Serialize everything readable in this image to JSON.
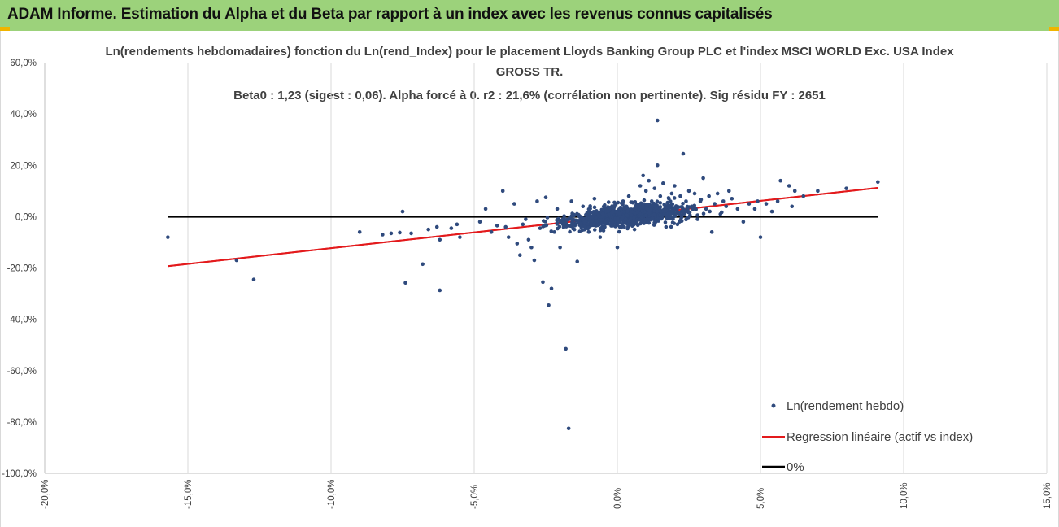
{
  "banner": {
    "title": "ADAM Informe. Estimation du Alpha et du Beta par rapport à un index avec les revenus connus capitalisés"
  },
  "chart_data": {
    "type": "scatter",
    "title_line1": "Ln(rendements hebdomadaires) fonction du Ln(rend_Index) pour le placement Lloyds Banking Group PLC et l'index MSCI WORLD Exc. USA Index",
    "title_line2": "GROSS TR.",
    "subtitle": "Beta0 : 1,23  (sigest : 0,06).  Alpha forcé à 0. r2 : 21,6% (corrélation non pertinente). Sig résidu FY : 2651",
    "xlabel": "",
    "ylabel": "",
    "xlim": [
      -0.2,
      0.15
    ],
    "ylim": [
      -1.0,
      0.6
    ],
    "x_ticks": [
      "-20,0%",
      "-15,0%",
      "-10,0%",
      "-5,0%",
      "0,0%",
      "5,0%",
      "10,0%",
      "15,0%"
    ],
    "y_ticks": [
      "60,0%",
      "40,0%",
      "20,0%",
      "0,0%",
      "-20,0%",
      "-40,0%",
      "-60,0%",
      "-80,0%",
      "-100,0%"
    ],
    "grid": "vertical",
    "legend_position": "bottom-right",
    "series": [
      {
        "name": "Ln(rendement hebdo)",
        "kind": "scatter",
        "color": "#2f4a7d",
        "points": [
          [
            -0.157,
            -0.08
          ],
          [
            -0.133,
            -0.17
          ],
          [
            -0.127,
            -0.245
          ],
          [
            -0.09,
            -0.06
          ],
          [
            -0.082,
            -0.07
          ],
          [
            -0.079,
            -0.065
          ],
          [
            -0.076,
            -0.062
          ],
          [
            -0.075,
            0.02
          ],
          [
            -0.074,
            -0.258
          ],
          [
            -0.072,
            -0.065
          ],
          [
            -0.068,
            -0.185
          ],
          [
            -0.066,
            -0.05
          ],
          [
            -0.063,
            -0.04
          ],
          [
            -0.062,
            -0.09
          ],
          [
            -0.062,
            -0.287
          ],
          [
            -0.058,
            -0.045
          ],
          [
            -0.056,
            -0.03
          ],
          [
            -0.055,
            -0.08
          ],
          [
            -0.048,
            -0.02
          ],
          [
            -0.046,
            0.03
          ],
          [
            -0.044,
            -0.06
          ],
          [
            -0.042,
            -0.035
          ],
          [
            -0.04,
            0.1
          ],
          [
            -0.039,
            -0.04
          ],
          [
            -0.038,
            -0.08
          ],
          [
            -0.036,
            0.05
          ],
          [
            -0.035,
            -0.105
          ],
          [
            -0.034,
            -0.15
          ],
          [
            -0.033,
            -0.03
          ],
          [
            -0.032,
            -0.01
          ],
          [
            -0.031,
            -0.09
          ],
          [
            -0.03,
            -0.12
          ],
          [
            -0.029,
            -0.17
          ],
          [
            -0.028,
            0.06
          ],
          [
            -0.027,
            -0.045
          ],
          [
            -0.026,
            -0.255
          ],
          [
            -0.025,
            0.075
          ],
          [
            -0.024,
            -0.345
          ],
          [
            -0.023,
            -0.28
          ],
          [
            -0.022,
            -0.06
          ],
          [
            -0.021,
            0.03
          ],
          [
            -0.02,
            -0.12
          ],
          [
            -0.019,
            -0.03
          ],
          [
            -0.018,
            -0.515
          ],
          [
            -0.017,
            -0.825
          ],
          [
            -0.016,
            0.06
          ],
          [
            -0.015,
            -0.05
          ],
          [
            -0.014,
            -0.175
          ],
          [
            -0.012,
            0.04
          ],
          [
            -0.01,
            -0.06
          ],
          [
            -0.008,
            0.07
          ],
          [
            -0.006,
            -0.08
          ],
          [
            -0.004,
            -0.02
          ],
          [
            -0.002,
            0.03
          ],
          [
            0.0,
            -0.12
          ],
          [
            0.002,
            0.06
          ],
          [
            0.004,
            0.08
          ],
          [
            0.006,
            -0.05
          ],
          [
            0.008,
            0.12
          ],
          [
            0.009,
            0.16
          ],
          [
            0.01,
            0.1
          ],
          [
            0.011,
            0.14
          ],
          [
            0.012,
            0.06
          ],
          [
            0.013,
            0.11
          ],
          [
            0.014,
            0.2
          ],
          [
            0.014,
            0.375
          ],
          [
            0.015,
            0.08
          ],
          [
            0.016,
            0.13
          ],
          [
            0.017,
            -0.04
          ],
          [
            0.018,
            0.07
          ],
          [
            0.019,
            0.09
          ],
          [
            0.02,
            0.12
          ],
          [
            0.021,
            -0.03
          ],
          [
            0.022,
            0.08
          ],
          [
            0.023,
            0.245
          ],
          [
            0.024,
            0.06
          ],
          [
            0.025,
            0.1
          ],
          [
            0.026,
            0.04
          ],
          [
            0.027,
            0.09
          ],
          [
            0.028,
            -0.01
          ],
          [
            0.029,
            0.06
          ],
          [
            0.03,
            0.15
          ],
          [
            0.031,
            0.03
          ],
          [
            0.032,
            0.08
          ],
          [
            0.033,
            -0.06
          ],
          [
            0.034,
            0.05
          ],
          [
            0.035,
            0.09
          ],
          [
            0.036,
            0.01
          ],
          [
            0.037,
            0.06
          ],
          [
            0.038,
            0.04
          ],
          [
            0.039,
            0.1
          ],
          [
            0.04,
            0.07
          ],
          [
            0.042,
            0.03
          ],
          [
            0.044,
            -0.02
          ],
          [
            0.046,
            0.05
          ],
          [
            0.048,
            0.03
          ],
          [
            0.049,
            0.06
          ],
          [
            0.05,
            -0.08
          ],
          [
            0.052,
            0.05
          ],
          [
            0.054,
            0.02
          ],
          [
            0.056,
            0.06
          ],
          [
            0.057,
            0.14
          ],
          [
            0.06,
            0.12
          ],
          [
            0.061,
            0.04
          ],
          [
            0.062,
            0.1
          ],
          [
            0.065,
            0.08
          ],
          [
            0.07,
            0.1
          ],
          [
            0.08,
            0.11
          ],
          [
            0.091,
            0.135
          ]
        ]
      },
      {
        "name": "Regression linéaire (actif vs index)",
        "kind": "line",
        "color": "#e31a1c",
        "points": [
          [
            -0.157,
            -0.193
          ],
          [
            0.091,
            0.112
          ]
        ]
      },
      {
        "name": "0%",
        "kind": "line",
        "color": "#000000",
        "points": [
          [
            -0.157,
            0.0
          ],
          [
            0.091,
            0.0
          ]
        ]
      }
    ]
  }
}
